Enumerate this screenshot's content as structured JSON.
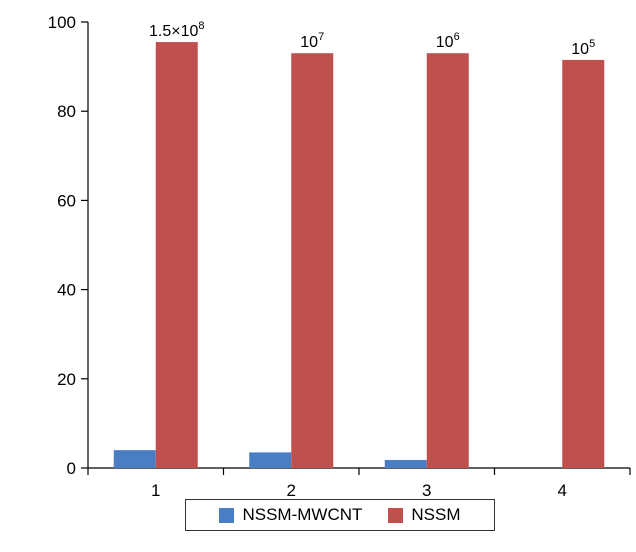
{
  "chart_data": {
    "type": "bar",
    "categories": [
      "1",
      "2",
      "3",
      "4"
    ],
    "series": [
      {
        "name": "NSSM-MWCNT",
        "color": "#4a7ec4",
        "values": [
          4,
          3.5,
          1.8,
          0
        ]
      },
      {
        "name": "NSSM",
        "color": "#c0504d",
        "values": [
          95.5,
          93,
          93,
          91.5
        ]
      }
    ],
    "data_labels": [
      {
        "base": "1.5×10",
        "exp": "8"
      },
      {
        "base": "10",
        "exp": "7"
      },
      {
        "base": "10",
        "exp": "6"
      },
      {
        "base": "10",
        "exp": "5"
      }
    ],
    "ylim": [
      0,
      100
    ],
    "yticks": [
      "0",
      "20",
      "40",
      "60",
      "80",
      "100"
    ],
    "legend_position": "bottom"
  }
}
